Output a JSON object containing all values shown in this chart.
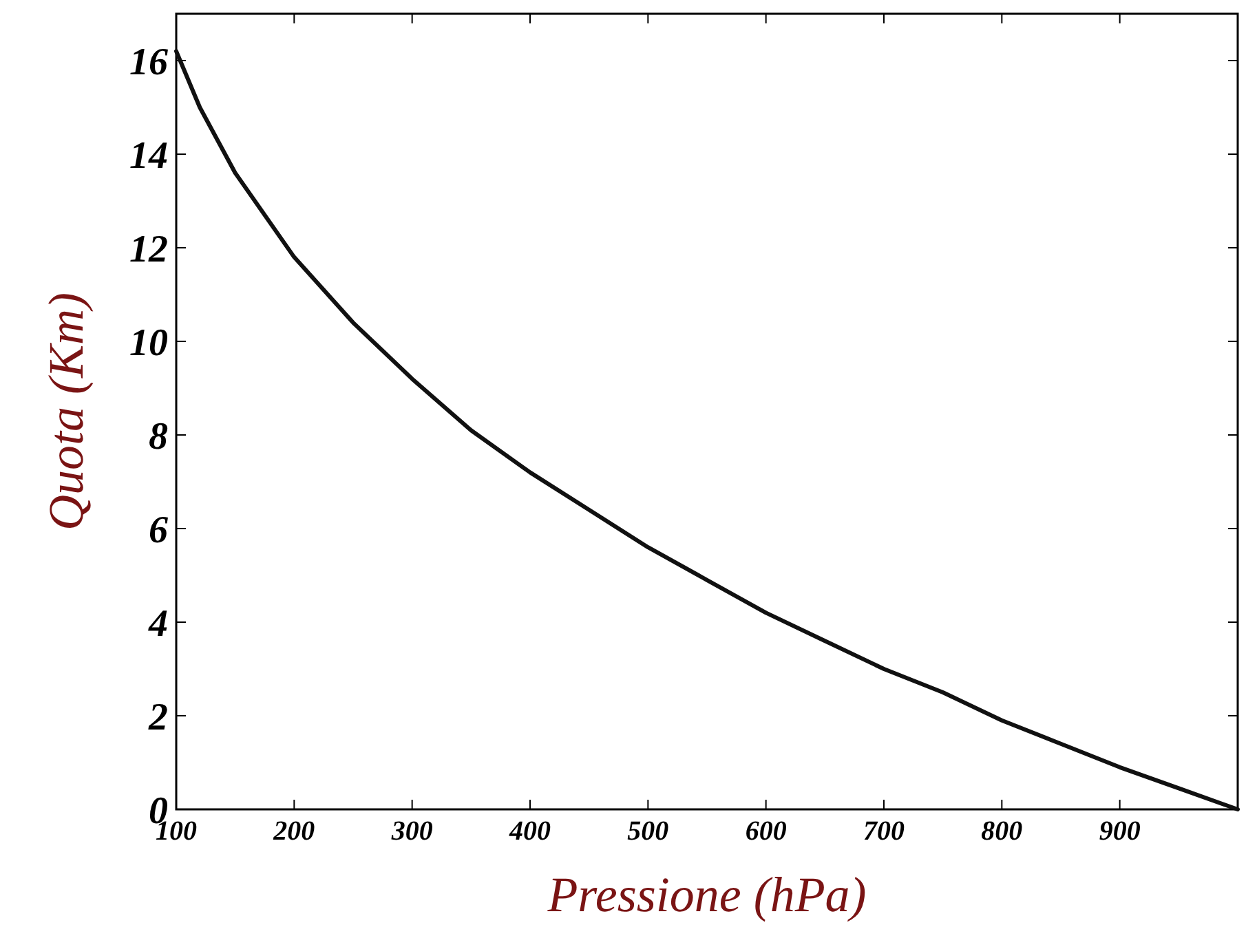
{
  "chart_data": {
    "type": "line",
    "xlabel": "Pressione (hPa)",
    "ylabel": "Quota (Km)",
    "x": [
      100,
      120,
      150,
      200,
      250,
      300,
      350,
      400,
      450,
      500,
      550,
      600,
      650,
      700,
      750,
      800,
      850,
      900,
      950,
      1000
    ],
    "series": [
      {
        "color": "#111111",
        "values": [
          16.2,
          15.0,
          13.6,
          11.8,
          10.4,
          9.2,
          8.1,
          7.2,
          6.4,
          5.6,
          4.9,
          4.2,
          3.6,
          3.0,
          2.5,
          1.9,
          1.4,
          0.9,
          0.45,
          0
        ]
      }
    ],
    "xlim": [
      100,
      1000
    ],
    "ylim": [
      0,
      17
    ],
    "xticks": [
      100,
      200,
      300,
      400,
      500,
      600,
      700,
      800,
      900
    ],
    "yticks": [
      0,
      2,
      4,
      6,
      8,
      10,
      12,
      14,
      16
    ],
    "grid": false,
    "line_style": "solid"
  }
}
